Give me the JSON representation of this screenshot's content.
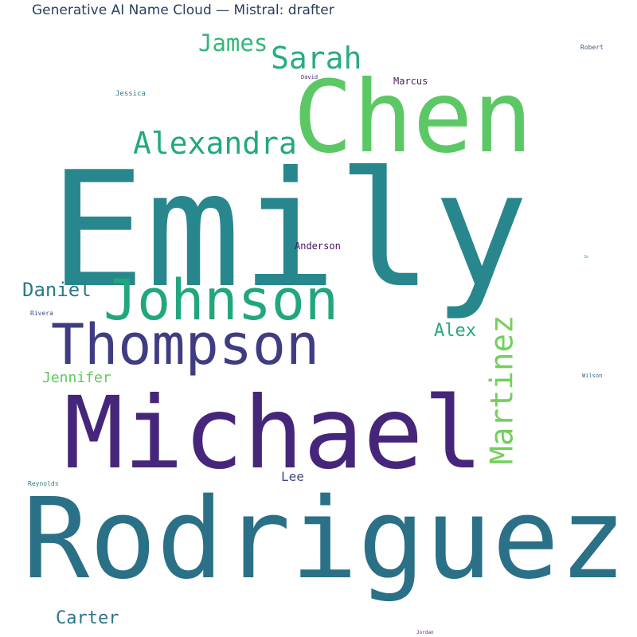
{
  "title": "Generative AI Name Cloud — Mistral: drafter",
  "words": [
    {
      "text": "Emily",
      "color": "#28878d"
    },
    {
      "text": "Rodriguez",
      "color": "#2a7087"
    },
    {
      "text": "Michael",
      "color": "#46267a"
    },
    {
      "text": "Chen",
      "color": "#5cc865"
    },
    {
      "text": "Thompson",
      "color": "#3f3d82"
    },
    {
      "text": "Johnson",
      "color": "#22a67e"
    },
    {
      "text": "Martinez",
      "color": "#72d05a"
    },
    {
      "text": "Alexandra",
      "color": "#23a881"
    },
    {
      "text": "Sarah",
      "color": "#27ad80"
    },
    {
      "text": "James",
      "color": "#35b67a"
    },
    {
      "text": "Daniel",
      "color": "#2b7a89"
    },
    {
      "text": "Alex",
      "color": "#25a880"
    },
    {
      "text": "Carter",
      "color": "#2c738d"
    },
    {
      "text": "Jennifer",
      "color": "#62ca5f"
    },
    {
      "text": "Lee",
      "color": "#3f4a87"
    },
    {
      "text": "Marcus",
      "color": "#501e5e"
    },
    {
      "text": "Anderson",
      "color": "#43125c"
    },
    {
      "text": "Jessica",
      "color": "#2d7a89"
    },
    {
      "text": "Robert",
      "color": "#3b5b8a"
    },
    {
      "text": "David",
      "color": "#4a2a7a"
    },
    {
      "text": "Rivera",
      "color": "#3d4d88"
    },
    {
      "text": "Wilson",
      "color": "#2e5f8a"
    },
    {
      "text": "Reynolds",
      "color": "#2b7f8a"
    },
    {
      "text": "Jordan",
      "color": "#5a2a7a"
    },
    {
      "text": "Jo",
      "color": "#2a8a8a"
    }
  ]
}
